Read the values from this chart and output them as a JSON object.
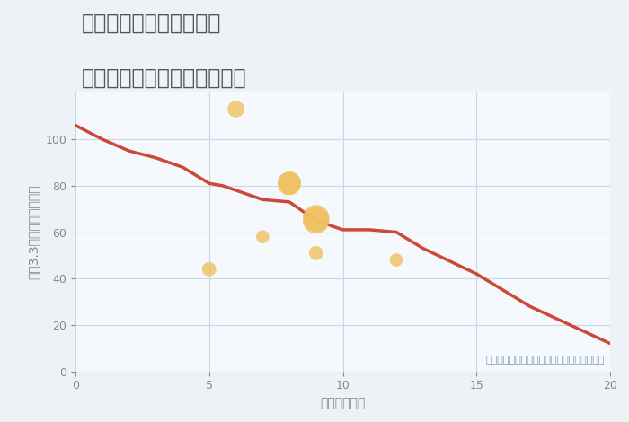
{
  "title_line1": "福岡県太宰府市長浦台の",
  "title_line2": "駅距離別中古マンション価格",
  "xlabel": "駅距離（分）",
  "ylabel": "坪（3.3㎡）単価（万円）",
  "bg_color": "#eef2f7",
  "plot_bg_color": "#f5f8fc",
  "line_color": "#cc4a35",
  "line_x": [
    0,
    1,
    2,
    3,
    4,
    5,
    5.5,
    6,
    7,
    8,
    9,
    10,
    11,
    12,
    13,
    15,
    17,
    20
  ],
  "line_y": [
    106,
    100,
    95,
    92,
    88,
    81,
    80,
    78,
    74,
    73,
    65,
    61,
    61,
    60,
    53,
    42,
    28,
    12
  ],
  "scatter_x": [
    6,
    5,
    7,
    8,
    8,
    9,
    9,
    9,
    12
  ],
  "scatter_y": [
    113,
    44,
    58,
    81,
    81,
    66,
    65,
    51,
    48
  ],
  "scatter_sizes": [
    180,
    130,
    110,
    350,
    350,
    450,
    450,
    130,
    110
  ],
  "scatter_color": "#f0c060",
  "scatter_alpha": 0.8,
  "annotation": "円の大きさは、取引のあった物件面積を示す",
  "annotation_color": "#7a9bb5",
  "xlim": [
    0,
    20
  ],
  "ylim": [
    0,
    120
  ],
  "xticks": [
    0,
    5,
    10,
    15,
    20
  ],
  "yticks": [
    0,
    20,
    40,
    60,
    80,
    100
  ],
  "grid_color": "#c8d8e8",
  "title_color": "#555555",
  "tick_color": "#888888",
  "axis_label_color": "#888888",
  "title_fontsize": 17,
  "axis_label_fontsize": 10,
  "tick_fontsize": 9,
  "annotation_fontsize": 8
}
